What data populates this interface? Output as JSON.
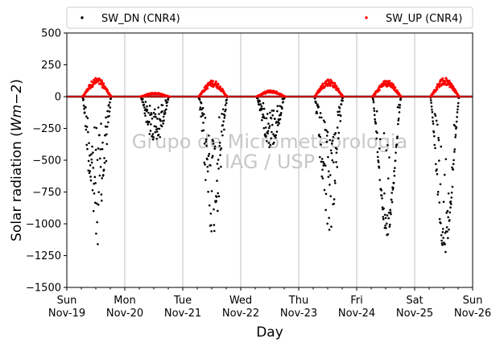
{
  "chart_data": {
    "type": "scatter",
    "title": "",
    "xlabel": "Day",
    "ylabel_prefix": "Solar radiation (",
    "ylabel_unit": "Wm",
    "ylabel_exp": "−2",
    "ylabel_suffix": ")",
    "watermark": [
      "Grupo de Micrometeorologia",
      "IAG / USP"
    ],
    "xlim": [
      "2017-11-19",
      "2017-11-26"
    ],
    "ylim": [
      -1500,
      500
    ],
    "yticks": [
      500,
      250,
      0,
      -250,
      -500,
      -750,
      -1000,
      -1250,
      -1500
    ],
    "ytick_labels": [
      "500",
      "250",
      "0",
      "−250",
      "−500",
      "−750",
      "−1000",
      "−1250",
      "−1500"
    ],
    "xticks": [
      {
        "day": "Sun",
        "date": "Nov-19"
      },
      {
        "day": "Mon",
        "date": "Nov-20"
      },
      {
        "day": "Tue",
        "date": "Nov-21"
      },
      {
        "day": "Wed",
        "date": "Nov-22"
      },
      {
        "day": "Thu",
        "date": "Nov-23"
      },
      {
        "day": "Fri",
        "date": "Nov-24"
      },
      {
        "day": "Sat",
        "date": "Nov-25"
      },
      {
        "day": "Sun",
        "date": "Nov-26"
      }
    ],
    "grid": "vertical",
    "legend_position": "top",
    "series": [
      {
        "name": "SW_DN (CNR4)",
        "color": "#000000",
        "marker": "dot",
        "daytime_peak_by_day": [
          -1170,
          -400,
          -1110,
          -410,
          -1090,
          -1100,
          -1230
        ]
      },
      {
        "name": "SW_UP (CNR4)",
        "color": "#ff0000",
        "marker": "dot",
        "daytime_peak_by_day": [
          150,
          30,
          130,
          50,
          140,
          130,
          150
        ]
      }
    ]
  }
}
